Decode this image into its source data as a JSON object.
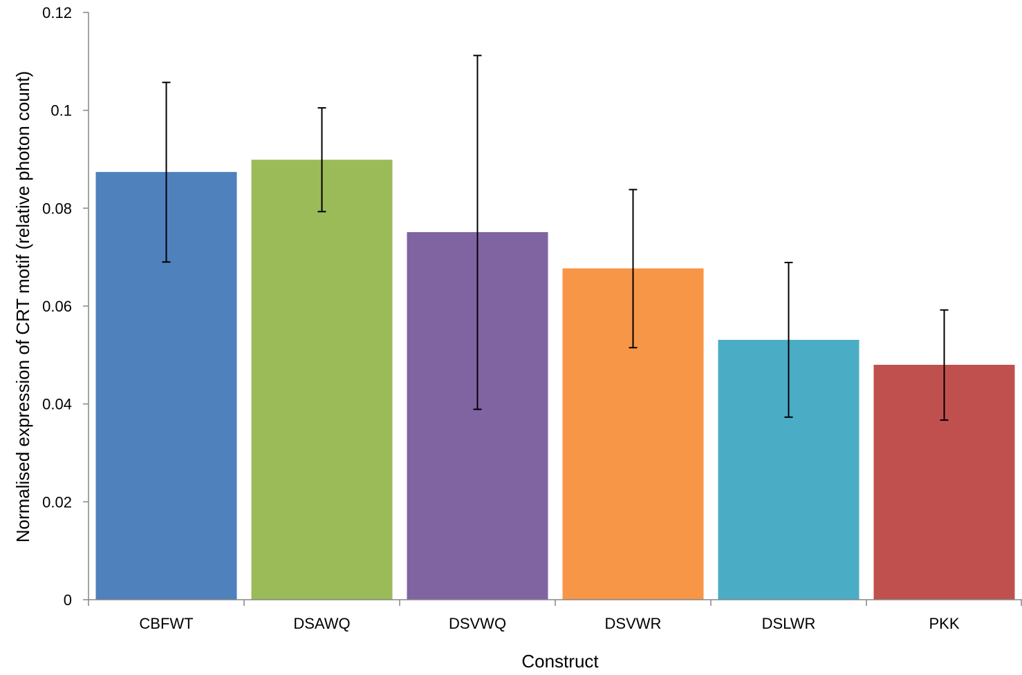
{
  "chart_data": {
    "type": "bar",
    "title": "",
    "xlabel": "Construct",
    "ylabel": "Normalised expression of CRT motif (relative photon count)",
    "categories": [
      "CBFWT",
      "DSAWQ",
      "DSVWQ",
      "DSVWR",
      "DSLWR",
      "PKK"
    ],
    "values": [
      0.0874,
      0.0899,
      0.0751,
      0.0677,
      0.0531,
      0.048
    ],
    "error_upper": [
      0.1057,
      0.1005,
      0.1112,
      0.0838,
      0.0689,
      0.0592
    ],
    "error_lower": [
      0.069,
      0.0793,
      0.0389,
      0.0515,
      0.0373,
      0.0367
    ],
    "colors": [
      "#4F81BD",
      "#9BBB59",
      "#8064A2",
      "#F79646",
      "#4BACC6",
      "#C0504D"
    ],
    "ylim": [
      0,
      0.12
    ],
    "yticks": [
      "0",
      "0.02",
      "0.04",
      "0.06",
      "0.08",
      "0.1",
      "0.12"
    ],
    "grid": false,
    "legend": "none"
  }
}
